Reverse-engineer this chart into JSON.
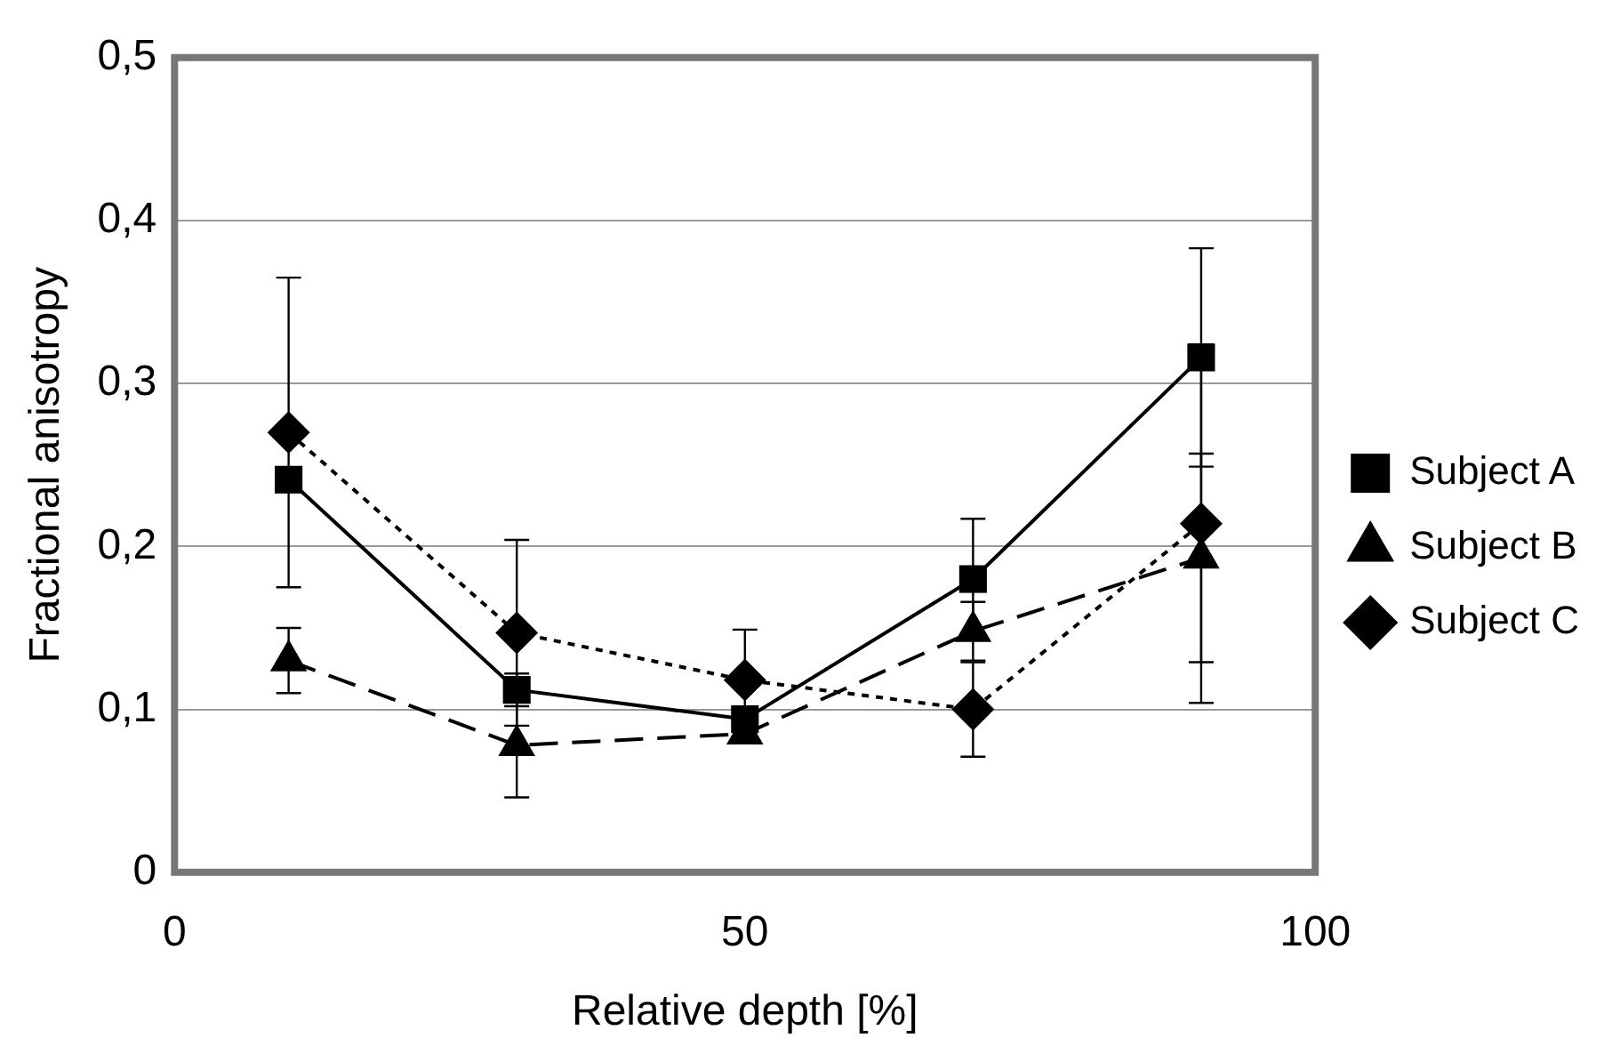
{
  "chart_data": {
    "type": "line",
    "xlabel": "Relative depth [%]",
    "ylabel": "Fractional anisotropy",
    "x": [
      10,
      30,
      50,
      70,
      90
    ],
    "series": [
      {
        "name": "Subject A",
        "color": "#000000",
        "marker": "square",
        "line_style": "solid",
        "values": [
          0.241,
          0.112,
          0.094,
          0.18,
          0.316
        ],
        "errors": [
          null,
          0.01,
          null,
          0.037,
          0.067
        ]
      },
      {
        "name": "Subject B",
        "color": "#000000",
        "marker": "triangle",
        "line_style": "dashed",
        "values": [
          0.13,
          0.078,
          0.085,
          0.148,
          0.193
        ],
        "errors": [
          0.02,
          0.032,
          null,
          0.018,
          0.064
        ]
      },
      {
        "name": "Subject C",
        "color": "#000000",
        "marker": "diamond",
        "line_style": "dotted",
        "values": [
          0.27,
          0.147,
          0.118,
          0.1,
          0.214
        ],
        "errors": [
          0.095,
          0.057,
          0.031,
          0.029,
          0.11
        ]
      }
    ],
    "xlim": [
      0,
      100
    ],
    "xticks": [
      0,
      50,
      100
    ],
    "ylim": [
      0,
      0.5
    ],
    "yticks": [
      {
        "value": 0,
        "label": "0"
      },
      {
        "value": 0.1,
        "label": "0,1"
      },
      {
        "value": 0.2,
        "label": "0,2"
      },
      {
        "value": 0.3,
        "label": "0,3"
      },
      {
        "value": 0.4,
        "label": "0,4"
      },
      {
        "value": 0.5,
        "label": "0,5"
      }
    ],
    "grid": "y",
    "legend": "right"
  }
}
